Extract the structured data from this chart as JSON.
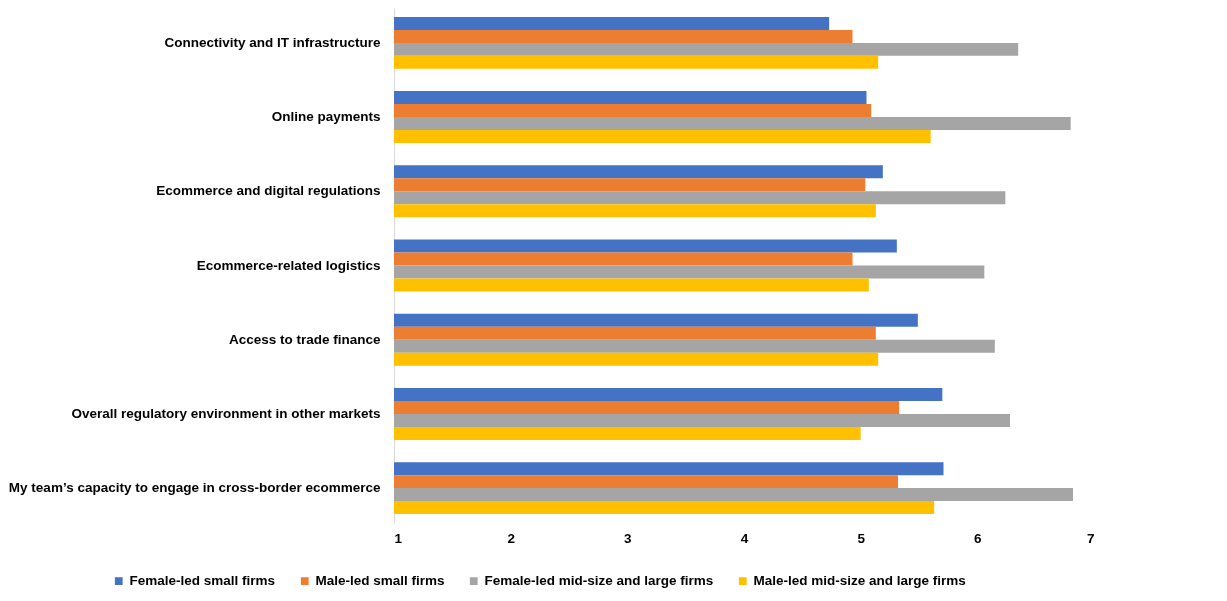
{
  "chart_data": {
    "type": "bar",
    "orientation": "horizontal",
    "categories": [
      "Connectivity and IT infrastructure",
      "Online payments",
      "Ecommerce and digital regulations",
      "Ecommerce-related logistics",
      "Access to trade finance",
      "Overall regulatory environment in other markets",
      "My team’s capacity to engage in cross-border ecommerce"
    ],
    "series": [
      {
        "name": "Female-led small firms",
        "color": "#4472c4",
        "values": [
          4.73,
          5.05,
          5.19,
          5.31,
          5.49,
          5.7,
          5.71
        ]
      },
      {
        "name": "Male-led small firms",
        "color": "#ed7d31",
        "values": [
          4.93,
          5.09,
          5.04,
          4.93,
          5.13,
          5.33,
          5.32
        ]
      },
      {
        "name": "Female-led mid-size and large firms",
        "color": "#a5a5a5",
        "values": [
          6.35,
          6.8,
          6.24,
          6.06,
          6.15,
          6.28,
          6.82
        ]
      },
      {
        "name": "Male-led mid-size and large firms",
        "color": "#ffc000",
        "values": [
          5.15,
          5.6,
          5.13,
          5.07,
          5.15,
          5.0,
          5.63
        ]
      }
    ],
    "xlim": [
      1,
      7
    ],
    "xticks": [
      1,
      2,
      3,
      4,
      5,
      6,
      7
    ],
    "grid": false,
    "legend": "bottom"
  }
}
